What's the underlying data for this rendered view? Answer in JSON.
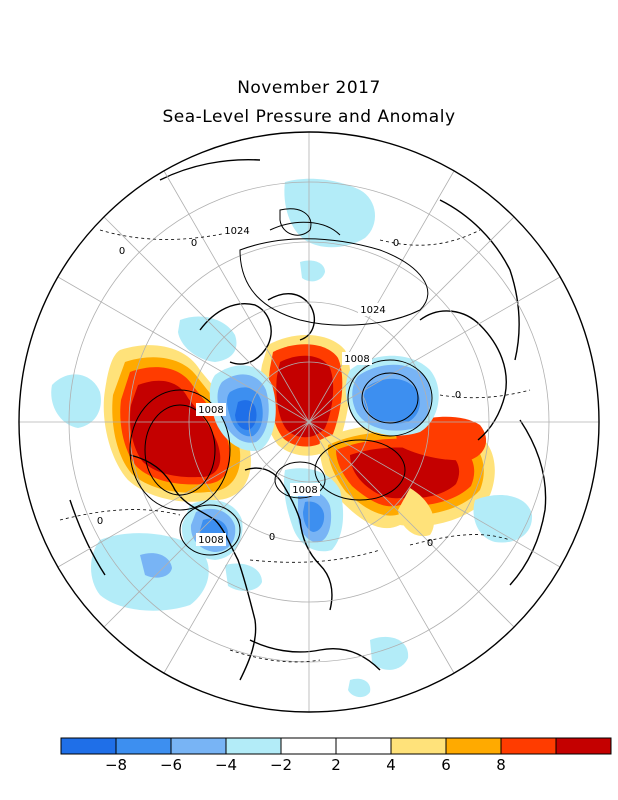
{
  "title": "November 2017",
  "subtitle": "Sea-Level Pressure and Anomaly",
  "contour_labels": [
    "1024",
    "1024",
    "1008",
    "1008",
    "1008",
    "1008",
    "0",
    "0",
    "0",
    "0",
    "0",
    "0",
    "0"
  ],
  "colorbar": {
    "colors": [
      "#1f6fe8",
      "#3d8ff0",
      "#78b4f5",
      "#b3ecf8",
      "#ffffff",
      "#ffffff",
      "#ffe27a",
      "#ffaa00",
      "#ff3c00",
      "#c40000"
    ],
    "tick_labels": [
      "-8",
      "-6",
      "-4",
      "-2",
      "2",
      "4",
      "6",
      "8"
    ]
  }
}
